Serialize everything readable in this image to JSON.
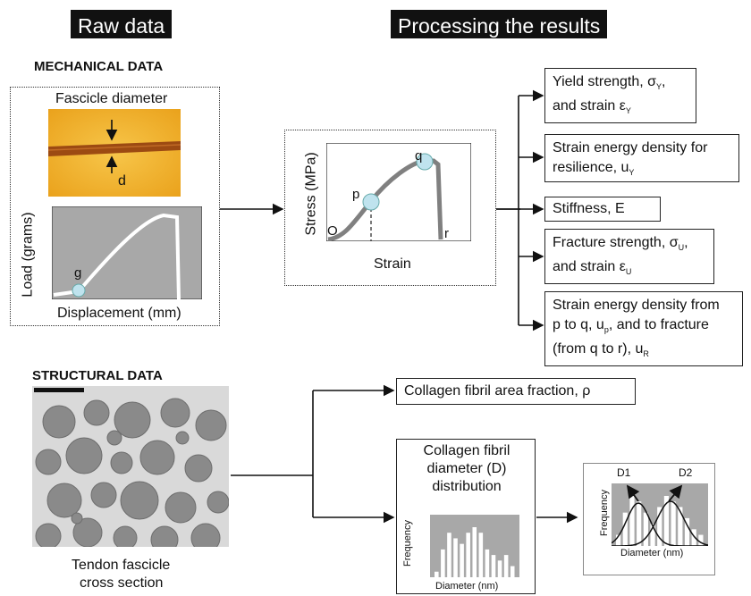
{
  "headers": {
    "raw": "Raw data",
    "processing": "Processing the  results"
  },
  "mechanical": {
    "title": "MECHANICAL DATA",
    "fascicle_label": "Fascicle diameter",
    "d_label": "d",
    "load_ylabel": "Load (grams)",
    "load_xlabel": "Displacement (mm)",
    "g_label": "g"
  },
  "stress_plot": {
    "ylabel": "Stress (MPa)",
    "xlabel": "Strain",
    "o_label": "O",
    "p_label": "p",
    "q_label": "q",
    "r_label": "r"
  },
  "results": {
    "yield": {
      "line1": "Yield strength, σ",
      "line1_sub": "Y",
      "line1_end": ",",
      "line2": "and strain ε",
      "line2_sub": "Y"
    },
    "resilience": {
      "line1": "Strain energy density for",
      "line2": "resilience, u",
      "line2_sub": "Y"
    },
    "stiffness": "Stiffness, E",
    "fracture": {
      "line1": "Fracture strength, σ",
      "line1_sub": "U",
      "line1_end": ",",
      "line2": "and strain ε",
      "line2_sub": "U"
    },
    "energy": {
      "line1": "Strain energy density from",
      "line2a": "p to q, u",
      "line2_sub": "p",
      "line2b": ", and to fracture",
      "line3": "(from q to r), u",
      "line3_sub": "R"
    }
  },
  "structural": {
    "title": "STRUCTURAL DATA",
    "caption_line1": "Tendon fascicle",
    "caption_line2": "cross section",
    "area_fraction": "Collagen fibril area fraction, ρ",
    "dist_line1": "Collagen fibril",
    "dist_line2": "diameter (D)",
    "dist_line3": "distribution",
    "hist_ylabel": "Frequency",
    "hist_xlabel": "Diameter (nm)",
    "fit_ylabel": "Frequency",
    "fit_xlabel": "Diameter (nm)",
    "d1_label": "D1",
    "d2_label": "D2"
  },
  "chart_data": [
    {
      "type": "bar",
      "title": "",
      "xlabel": "Diameter (nm)",
      "ylabel": "Frequency",
      "values": [
        1,
        5,
        8,
        7,
        6,
        8,
        9,
        8,
        5,
        4,
        3,
        4,
        2
      ]
    },
    {
      "type": "bar",
      "title": "",
      "xlabel": "Diameter (nm)",
      "ylabel": "Frequency",
      "values": [
        2,
        6,
        9,
        8,
        6,
        4,
        7,
        9,
        8,
        7,
        5,
        3,
        2
      ]
    }
  ],
  "colors": {
    "accent_circle": "#bfe3ee",
    "plot_bg": "#a8a8a8",
    "curve": "#7f7f7f"
  }
}
